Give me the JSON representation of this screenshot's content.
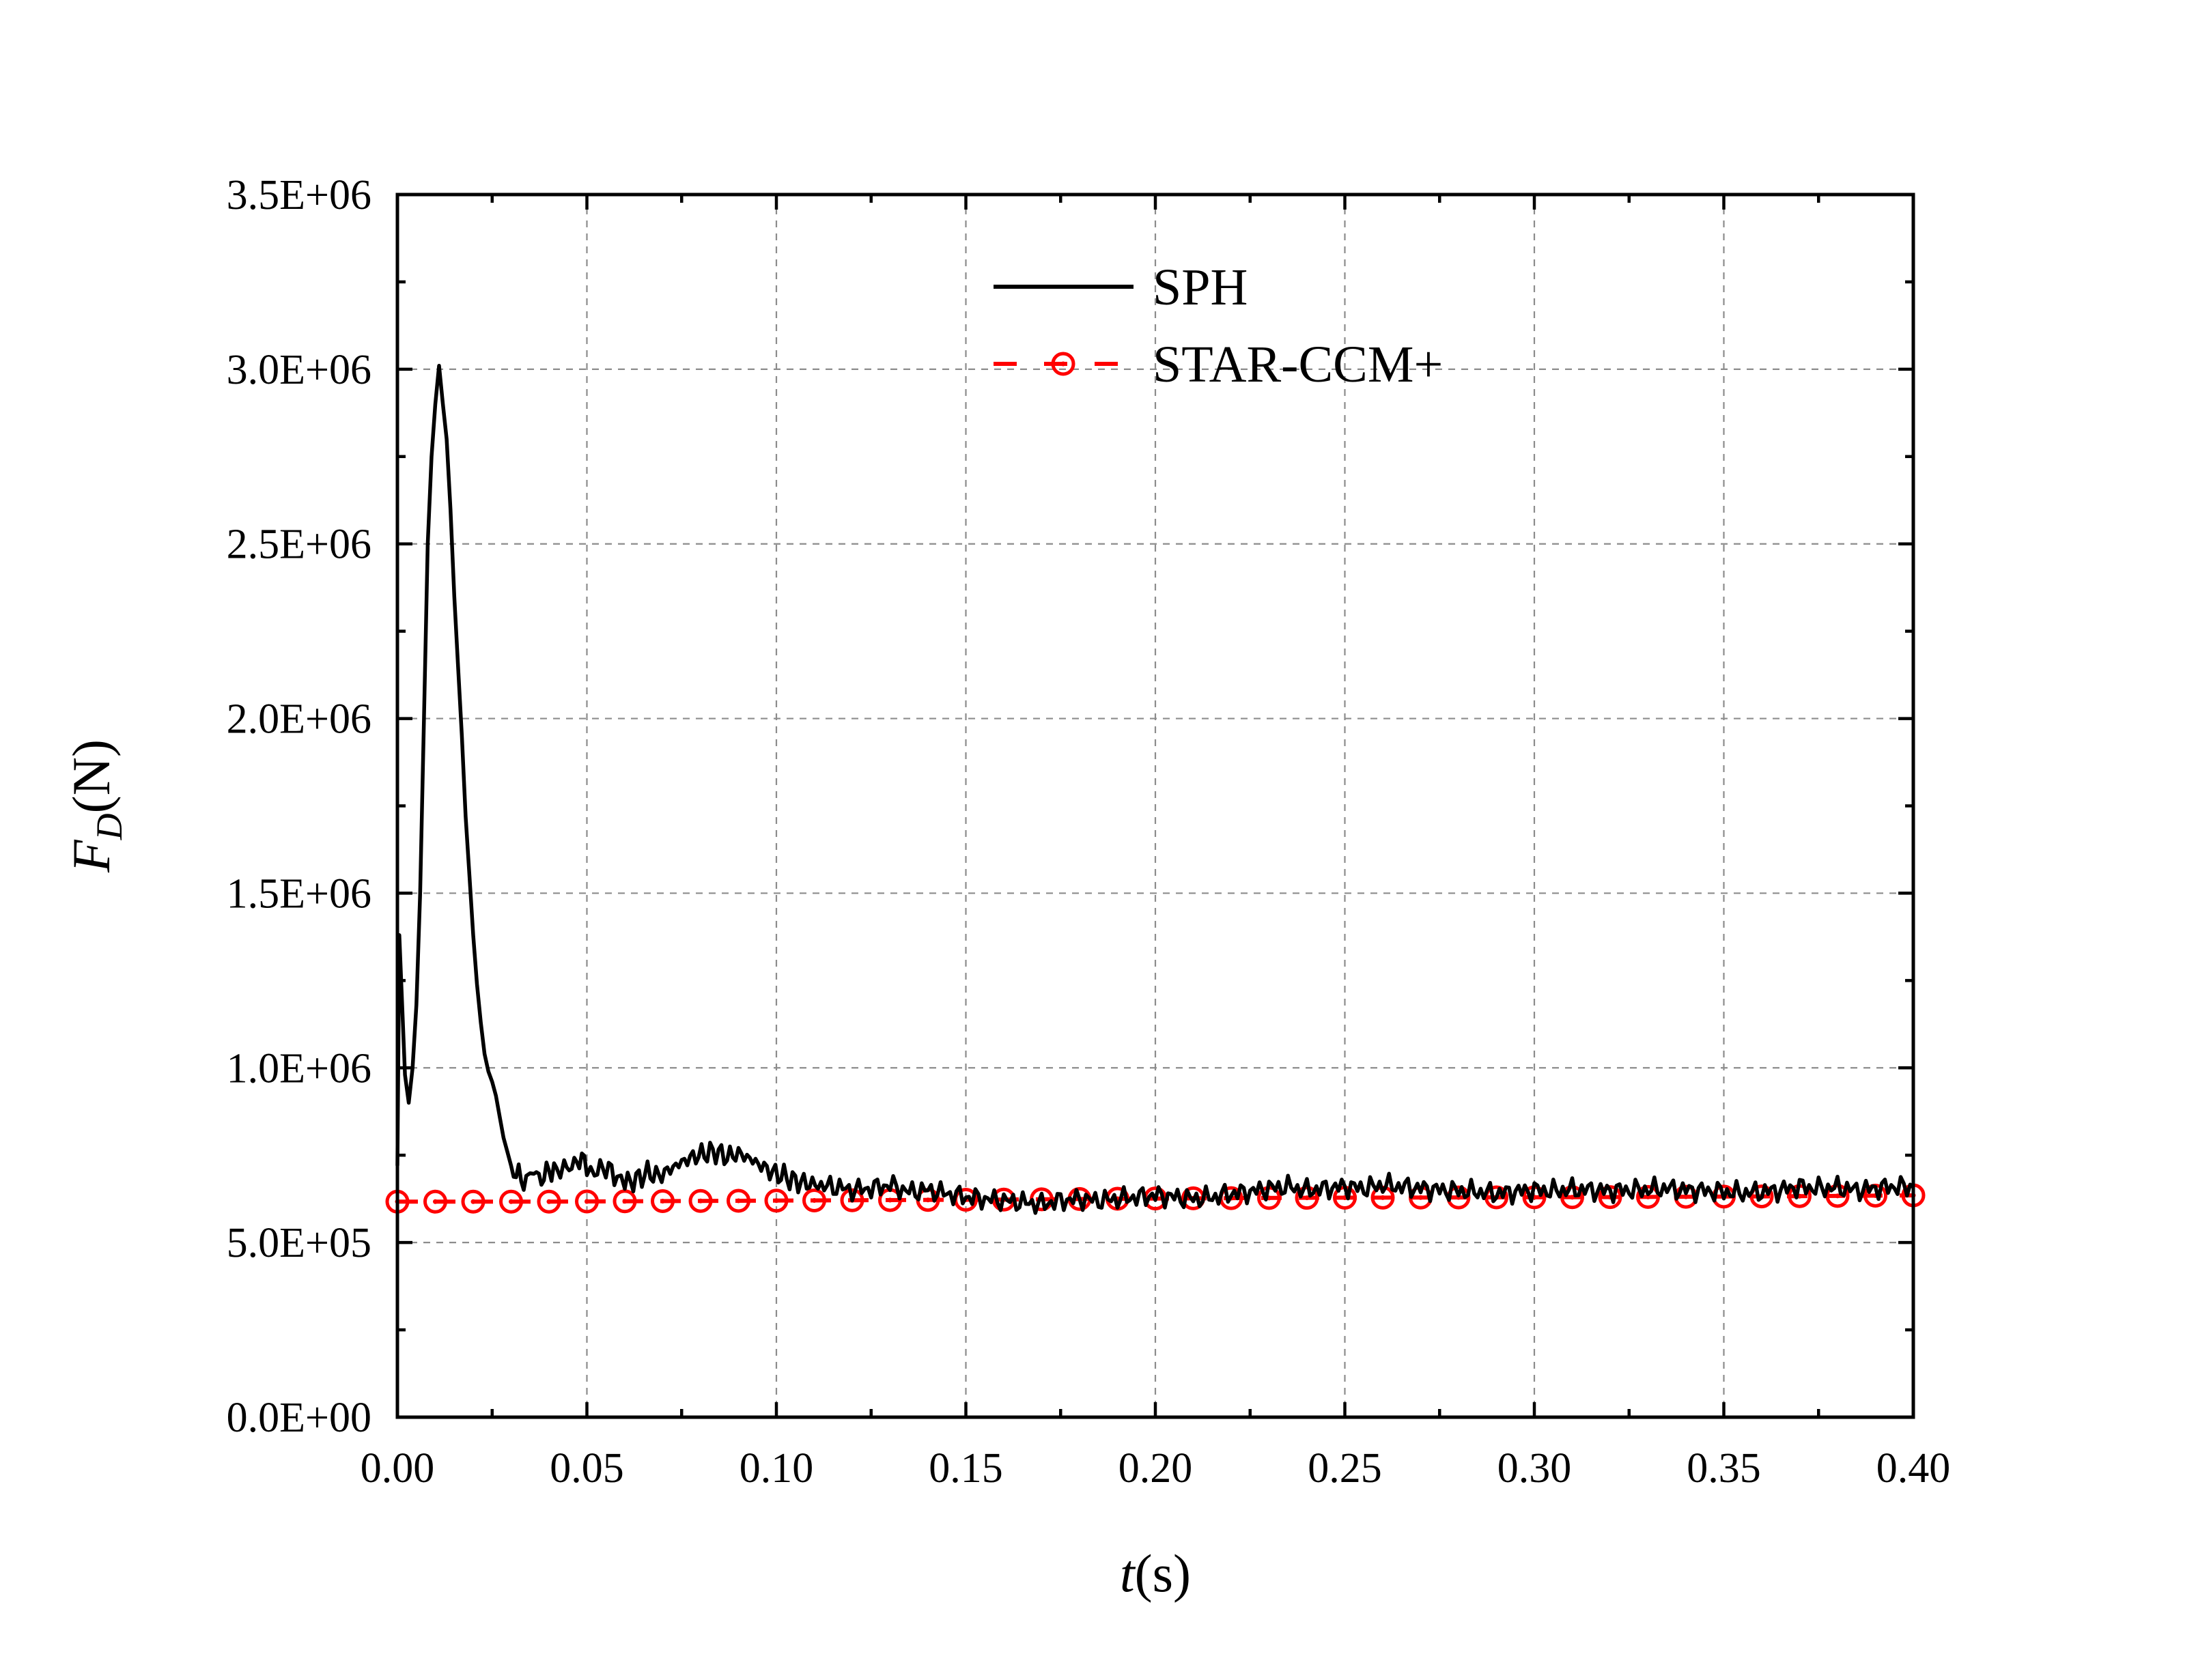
{
  "chart_data": {
    "type": "line",
    "x_axis": {
      "title_italic": "t",
      "title_rest": "(s)",
      "range": [
        0.0,
        0.4
      ],
      "ticks": [
        0.0,
        0.05,
        0.1,
        0.15,
        0.2,
        0.25,
        0.3,
        0.35,
        0.4
      ],
      "tick_labels": [
        "0.00",
        "0.05",
        "0.10",
        "0.15",
        "0.20",
        "0.25",
        "0.30",
        "0.35",
        "0.40"
      ]
    },
    "y_axis": {
      "title_italic": "F",
      "title_subscript": "D",
      "title_rest": "(N)",
      "range": [
        0,
        3500000
      ],
      "ticks": [
        0,
        500000,
        1000000,
        1500000,
        2000000,
        2500000,
        3000000,
        3500000
      ],
      "tick_labels": [
        "0.0E+00",
        "5.0E+05",
        "1.0E+06",
        "1.5E+06",
        "2.0E+06",
        "2.5E+06",
        "3.0E+06",
        "3.5E+06"
      ]
    },
    "grid": true,
    "legend_position": "top-center",
    "series": [
      {
        "name": "SPH",
        "color": "#000000",
        "style": "solid",
        "points": [
          [
            0.0,
            720000
          ],
          [
            0.0005,
            1380000
          ],
          [
            0.001,
            1250000
          ],
          [
            0.002,
            980000
          ],
          [
            0.003,
            900000
          ],
          [
            0.004,
            1000000
          ],
          [
            0.005,
            1180000
          ],
          [
            0.006,
            1500000
          ],
          [
            0.007,
            2000000
          ],
          [
            0.008,
            2500000
          ],
          [
            0.009,
            2750000
          ],
          [
            0.01,
            2900000
          ],
          [
            0.011,
            3010000
          ],
          [
            0.012,
            2900000
          ],
          [
            0.013,
            2800000
          ],
          [
            0.014,
            2600000
          ],
          [
            0.015,
            2350000
          ],
          [
            0.016,
            2150000
          ],
          [
            0.017,
            1950000
          ],
          [
            0.018,
            1720000
          ],
          [
            0.019,
            1550000
          ],
          [
            0.02,
            1380000
          ],
          [
            0.021,
            1240000
          ],
          [
            0.022,
            1130000
          ],
          [
            0.023,
            1040000
          ],
          [
            0.024,
            990000
          ],
          [
            0.025,
            960000
          ],
          [
            0.026,
            920000
          ],
          [
            0.027,
            860000
          ],
          [
            0.028,
            800000
          ],
          [
            0.029,
            760000
          ],
          [
            0.03,
            720000
          ],
          [
            0.032,
            690000
          ],
          [
            0.034,
            670000
          ],
          [
            0.036,
            700000
          ],
          [
            0.038,
            680000
          ],
          [
            0.04,
            710000
          ],
          [
            0.042,
            700000
          ],
          [
            0.044,
            720000
          ],
          [
            0.046,
            715000
          ],
          [
            0.048,
            740000
          ],
          [
            0.05,
            725000
          ],
          [
            0.052,
            705000
          ],
          [
            0.055,
            715000
          ],
          [
            0.058,
            690000
          ],
          [
            0.06,
            670000
          ],
          [
            0.063,
            680000
          ],
          [
            0.066,
            700000
          ],
          [
            0.069,
            690000
          ],
          [
            0.072,
            710000
          ],
          [
            0.075,
            730000
          ],
          [
            0.078,
            745000
          ],
          [
            0.081,
            755000
          ],
          [
            0.084,
            760000
          ],
          [
            0.087,
            745000
          ],
          [
            0.09,
            755000
          ],
          [
            0.093,
            740000
          ],
          [
            0.096,
            720000
          ],
          [
            0.099,
            700000
          ],
          [
            0.102,
            690000
          ],
          [
            0.105,
            675000
          ],
          [
            0.108,
            670000
          ],
          [
            0.111,
            665000
          ],
          [
            0.115,
            660000
          ],
          [
            0.12,
            650000
          ],
          [
            0.125,
            655000
          ],
          [
            0.13,
            665000
          ],
          [
            0.135,
            645000
          ],
          [
            0.14,
            650000
          ],
          [
            0.145,
            640000
          ],
          [
            0.15,
            630000
          ],
          [
            0.155,
            625000
          ],
          [
            0.16,
            620000
          ],
          [
            0.165,
            615000
          ],
          [
            0.17,
            610000
          ],
          [
            0.175,
            620000
          ],
          [
            0.18,
            625000
          ],
          [
            0.185,
            620000
          ],
          [
            0.19,
            625000
          ],
          [
            0.195,
            630000
          ],
          [
            0.2,
            635000
          ],
          [
            0.205,
            630000
          ],
          [
            0.21,
            625000
          ],
          [
            0.215,
            630000
          ],
          [
            0.22,
            640000
          ],
          [
            0.225,
            645000
          ],
          [
            0.23,
            655000
          ],
          [
            0.235,
            660000
          ],
          [
            0.24,
            650000
          ],
          [
            0.245,
            655000
          ],
          [
            0.25,
            660000
          ],
          [
            0.255,
            655000
          ],
          [
            0.26,
            665000
          ],
          [
            0.265,
            660000
          ],
          [
            0.27,
            655000
          ],
          [
            0.275,
            650000
          ],
          [
            0.28,
            648000
          ],
          [
            0.285,
            645000
          ],
          [
            0.29,
            640000
          ],
          [
            0.295,
            645000
          ],
          [
            0.3,
            650000
          ],
          [
            0.305,
            648000
          ],
          [
            0.31,
            652000
          ],
          [
            0.315,
            650000
          ],
          [
            0.32,
            648000
          ],
          [
            0.325,
            650000
          ],
          [
            0.33,
            652000
          ],
          [
            0.335,
            655000
          ],
          [
            0.34,
            650000
          ],
          [
            0.345,
            648000
          ],
          [
            0.35,
            645000
          ],
          [
            0.355,
            642000
          ],
          [
            0.36,
            645000
          ],
          [
            0.365,
            650000
          ],
          [
            0.37,
            660000
          ],
          [
            0.375,
            655000
          ],
          [
            0.38,
            658000
          ],
          [
            0.385,
            650000
          ],
          [
            0.39,
            655000
          ],
          [
            0.395,
            660000
          ],
          [
            0.4,
            658000
          ]
        ]
      },
      {
        "name": "STAR-CCM+",
        "color": "#ff0000",
        "style": "dashed",
        "marker": "circle-dot",
        "points": [
          [
            0.0,
            617000
          ],
          [
            0.04,
            617000
          ],
          [
            0.08,
            619000
          ],
          [
            0.12,
            621000
          ],
          [
            0.16,
            623000
          ],
          [
            0.2,
            626000
          ],
          [
            0.24,
            628000
          ],
          [
            0.28,
            629000
          ],
          [
            0.32,
            630000
          ],
          [
            0.36,
            632000
          ],
          [
            0.4,
            635000
          ]
        ],
        "marker_x": [
          0.0,
          0.01,
          0.02,
          0.03,
          0.04,
          0.05,
          0.06,
          0.07,
          0.08,
          0.09,
          0.1,
          0.11,
          0.12,
          0.13,
          0.14,
          0.15,
          0.16,
          0.17,
          0.18,
          0.19,
          0.2,
          0.21,
          0.22,
          0.23,
          0.24,
          0.25,
          0.26,
          0.27,
          0.28,
          0.29,
          0.3,
          0.31,
          0.32,
          0.33,
          0.34,
          0.35,
          0.36,
          0.37,
          0.38,
          0.39,
          0.4
        ]
      }
    ]
  }
}
